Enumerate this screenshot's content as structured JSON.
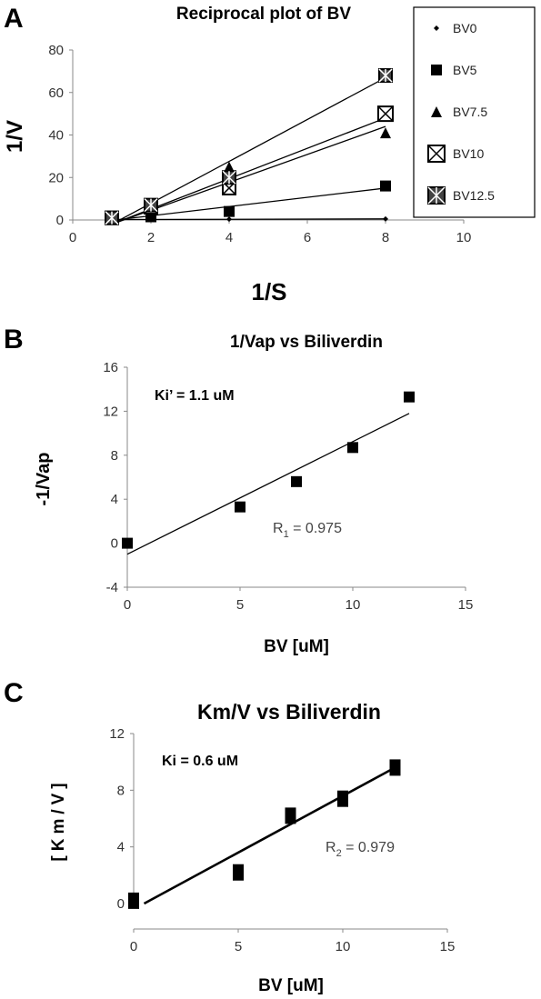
{
  "chart_data": [
    {
      "panel": "A",
      "type": "line",
      "title": "Reciprocal plot of BV",
      "xlabel": "1/S",
      "ylabel": "1/V",
      "xlim": [
        0,
        10
      ],
      "ylim": [
        0,
        80
      ],
      "xticks": [
        "0",
        "2",
        "4",
        "6",
        "8",
        "10"
      ],
      "yticks": [
        "0",
        "20",
        "40",
        "60",
        "80"
      ],
      "legend_position": "right",
      "grid": false,
      "series": [
        {
          "name": "BV0",
          "marker": "diamond",
          "x": [
            1,
            2,
            4,
            8
          ],
          "y": [
            0.2,
            0.3,
            0.4,
            0.5
          ],
          "fit": [
            [
              1,
              0.2
            ],
            [
              8,
              0.5
            ]
          ]
        },
        {
          "name": "BV5",
          "marker": "square",
          "x": [
            1,
            2,
            4,
            8
          ],
          "y": [
            1,
            1.5,
            4,
            16
          ],
          "fit": [
            [
              1,
              -0.2
            ],
            [
              8,
              15
            ]
          ]
        },
        {
          "name": "BV7.5",
          "marker": "triangle",
          "x": [
            1,
            2,
            4,
            8
          ],
          "y": [
            1,
            5,
            25,
            41
          ],
          "fit": [
            [
              1,
              -3
            ],
            [
              8,
              44
            ]
          ]
        },
        {
          "name": "BV10",
          "marker": "xbox",
          "x": [
            1,
            2,
            4,
            8
          ],
          "y": [
            1,
            6,
            15,
            50
          ],
          "fit": [
            [
              1,
              -2
            ],
            [
              8,
              48
            ]
          ]
        },
        {
          "name": "BV12.5",
          "marker": "starbox",
          "x": [
            1,
            2,
            4,
            8
          ],
          "y": [
            1,
            7,
            20,
            68
          ],
          "fit": [
            [
              1,
              -5
            ],
            [
              8,
              67
            ]
          ]
        }
      ]
    },
    {
      "panel": "B",
      "type": "scatter",
      "title": "1/Vap vs Biliverdin",
      "xlabel": "BV  [uM]",
      "ylabel": "-1/Vap",
      "xlim": [
        0,
        15
      ],
      "ylim": [
        -4,
        16
      ],
      "xticks": [
        "0",
        "5",
        "10",
        "15"
      ],
      "yticks": [
        "-4",
        "0",
        "4",
        "8",
        "12",
        "16"
      ],
      "annotation": "Ki’ = 1.1 uM",
      "r_label": "R",
      "r_sub": "1",
      "r_value": " = 0.975",
      "x": [
        0,
        5,
        7.5,
        10,
        12.5
      ],
      "y": [
        0,
        3.3,
        5.6,
        8.7,
        13.3
      ],
      "fit": [
        [
          0,
          -1
        ],
        [
          12.5,
          11.8
        ]
      ]
    },
    {
      "panel": "C",
      "type": "scatter",
      "title": "Km/V vs Biliverdin",
      "xlabel": "BV  [uM]",
      "ylabel": "[Km/V]",
      "xlim": [
        0,
        15
      ],
      "ylim": [
        0,
        12
      ],
      "xticks": [
        "0",
        "5",
        "10",
        "15"
      ],
      "yticks": [
        "0",
        "4",
        "8",
        "12"
      ],
      "annotation": "Ki = 0.6 uM",
      "r_label": "R",
      "r_sub": "2",
      "r_value": " = 0.979",
      "x": [
        0,
        5,
        7.5,
        10,
        12.5
      ],
      "y": [
        0.2,
        2.2,
        6.2,
        7.4,
        9.6
      ],
      "fit": [
        [
          0.5,
          0
        ],
        [
          12.5,
          9.6
        ]
      ]
    }
  ]
}
